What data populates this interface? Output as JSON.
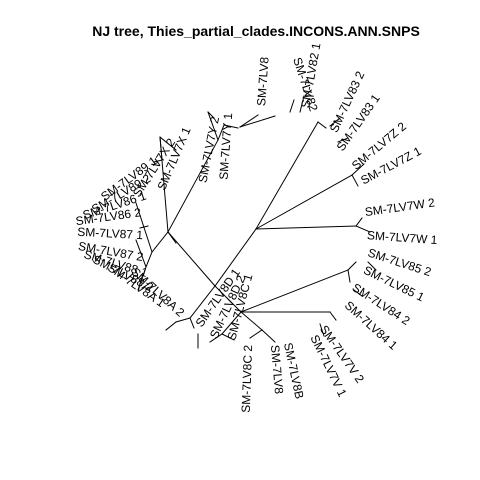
{
  "figure": {
    "title": "NJ tree,  Thies_partial_clades.INCONS.ANN.SNPS",
    "layout": "unrooted radial",
    "text_color": "#000000",
    "background": "#ffffff"
  },
  "tips": [
    {
      "label": "SM-7LV82"
    },
    {
      "label": "SM-7LV82 1"
    },
    {
      "label": "SM-7LV83 2"
    },
    {
      "label": "SM-7LV83 1"
    },
    {
      "label": "SM-7LV7Z 2"
    },
    {
      "label": "SM-7LV7Z 1"
    },
    {
      "label": "SM-7LV7W 2"
    },
    {
      "label": "SM-7LV7W 1"
    },
    {
      "label": "SM-7LV85 2"
    },
    {
      "label": "SM-7LV85 1"
    },
    {
      "label": "SM-7LV84 2"
    },
    {
      "label": "SM-7LV84 1"
    },
    {
      "label": "SM-7LV7V 2"
    },
    {
      "label": "SM-7LV7V 1"
    },
    {
      "label": "SM-7LV8B"
    },
    {
      "label": "SM-7LV8"
    },
    {
      "label": "SM-7LV8C 2"
    },
    {
      "label": "SM-7LV8C 1"
    },
    {
      "label": "SM-7LV8D 2"
    },
    {
      "label": "SM-7LV8D 1"
    },
    {
      "label": "SM-7LV8A 2"
    },
    {
      "label": "SM-7LV8A 1"
    },
    {
      "label": "SM-7LV88 2"
    },
    {
      "label": "SM-7LV88 1"
    },
    {
      "label": "SM-7LV87 2"
    },
    {
      "label": "SM-7LV87 1"
    },
    {
      "label": "SM-7LV86 2"
    },
    {
      "label": "SM-7LV86 1"
    },
    {
      "label": "SM-7LV89 2"
    },
    {
      "label": "SM-7LV89 1"
    },
    {
      "label": "SM-7LV7X 2"
    },
    {
      "label": "SM-7LV7X 1"
    },
    {
      "label": "SM-7LV7Y 2"
    },
    {
      "label": "SM-7LV7Y 1"
    },
    {
      "label": "SM-7LV8"
    }
  ]
}
